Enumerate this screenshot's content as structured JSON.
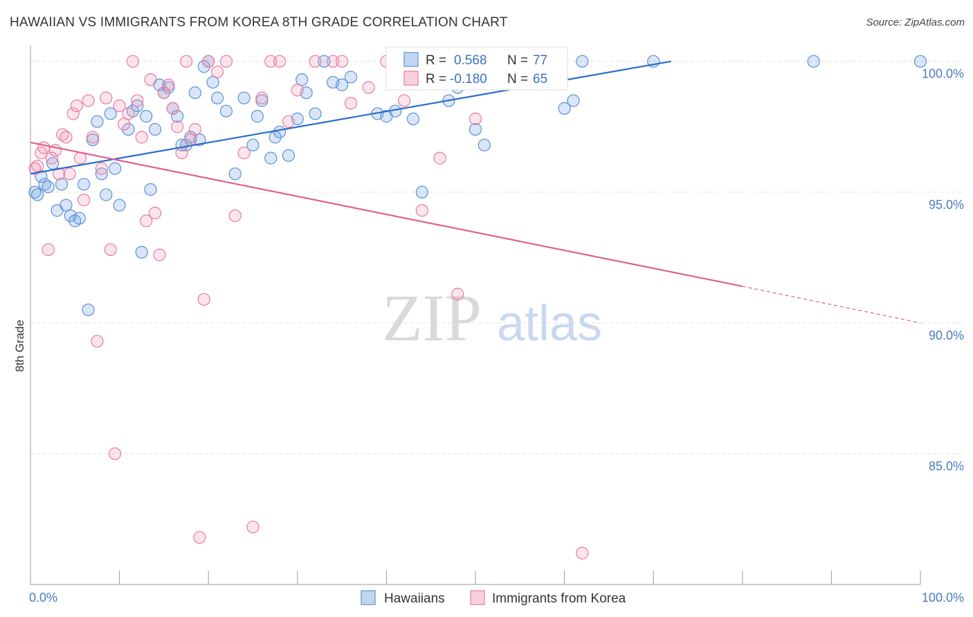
{
  "title": "HAWAIIAN VS IMMIGRANTS FROM KOREA 8TH GRADE CORRELATION CHART",
  "source": "Source: ZipAtlas.com",
  "watermark": {
    "zip": "ZIP",
    "atlas": "atlas"
  },
  "colors": {
    "blue": "#5b8fd6",
    "blue_fill": "rgba(120,165,225,0.28)",
    "blue_line": "#2a6bc9",
    "pink": "#e87aa0",
    "pink_fill": "rgba(240,150,180,0.25)",
    "pink_line": "#e0608c"
  },
  "stats": [
    {
      "r_label": "R =",
      "r_value": "0.568",
      "n_label": "N =",
      "n_value": "77"
    },
    {
      "r_label": "R =",
      "r_value": "-0.180",
      "n_label": "N =",
      "n_value": "65"
    }
  ],
  "chart_data": {
    "type": "scatter",
    "title": "HAWAIIAN VS IMMIGRANTS FROM KOREA 8TH GRADE CORRELATION CHART",
    "xlabel": "",
    "ylabel": "8th Grade",
    "xlim": [
      0,
      100
    ],
    "ylim": [
      80,
      100.6
    ],
    "x_tick_labels": [
      "0.0%",
      "100.0%"
    ],
    "y_ticks": [
      85,
      90,
      95,
      100
    ],
    "y_tick_labels": [
      "85.0%",
      "90.0%",
      "95.0%",
      "100.0%"
    ],
    "grid": true,
    "legend_position": "bottom-center",
    "series": [
      {
        "name": "Hawaiians",
        "trend": {
          "x": [
            0,
            72
          ],
          "y": [
            95.7,
            100.0
          ]
        },
        "x": [
          0.5,
          0.8,
          1.2,
          1.6,
          2,
          2.5,
          3,
          3.5,
          4,
          4.5,
          5,
          5.5,
          6,
          6.5,
          7,
          7.5,
          8,
          8.5,
          9,
          9.5,
          10,
          11,
          11.5,
          12,
          12.5,
          13,
          13.5,
          14,
          14.5,
          15,
          15.5,
          16,
          16.5,
          17,
          17.5,
          18,
          18.5,
          19,
          19.5,
          20,
          20.5,
          21,
          22,
          23,
          24,
          25,
          25.5,
          26,
          27,
          27.5,
          28,
          29,
          30,
          30.5,
          31,
          32,
          33,
          34,
          35,
          36,
          39,
          40,
          41,
          43,
          44,
          47,
          48,
          50,
          51,
          54,
          55,
          60,
          61,
          62,
          70,
          88,
          100
        ],
        "y": [
          95.0,
          94.9,
          95.6,
          95.3,
          95.2,
          96.1,
          94.3,
          95.3,
          94.5,
          94.1,
          93.9,
          94.0,
          95.3,
          90.5,
          97.0,
          97.7,
          95.7,
          94.9,
          98.0,
          95.9,
          94.5,
          97.4,
          98.1,
          98.3,
          92.7,
          97.9,
          95.1,
          97.4,
          99.1,
          98.8,
          99.0,
          98.2,
          97.9,
          96.8,
          96.8,
          97.1,
          98.8,
          97.0,
          99.8,
          100.0,
          99.2,
          98.6,
          98.1,
          95.7,
          98.6,
          96.8,
          97.9,
          98.5,
          96.3,
          97.1,
          97.3,
          96.4,
          97.8,
          99.3,
          98.8,
          98.0,
          100.0,
          99.2,
          99.1,
          99.4,
          98.0,
          97.9,
          98.1,
          97.8,
          95.0,
          98.5,
          99.0,
          97.4,
          96.8,
          100.0,
          100.0,
          98.2,
          98.5,
          100.0,
          100.0,
          100.0,
          100.0
        ]
      },
      {
        "name": "Immigrants from Korea",
        "trend": {
          "x": [
            0,
            80
          ],
          "y": [
            96.9,
            91.4
          ]
        },
        "trend_dashed": {
          "x": [
            80,
            100
          ],
          "y": [
            91.4,
            90.0
          ]
        },
        "x": [
          0.5,
          0.8,
          1.2,
          1.5,
          2,
          2.4,
          2.8,
          3.2,
          3.6,
          4,
          4.4,
          4.8,
          5.2,
          5.6,
          6,
          6.5,
          7,
          7.5,
          8,
          8.5,
          9,
          9.5,
          10,
          10.5,
          11,
          11.5,
          12,
          12.5,
          13,
          13.5,
          14,
          14.5,
          15,
          15.5,
          16,
          16.5,
          17,
          17.5,
          18,
          18.5,
          19,
          19.5,
          20,
          21,
          22,
          23,
          24,
          25,
          26,
          27,
          28,
          29,
          30,
          32,
          34,
          35,
          36,
          38,
          40,
          42,
          44,
          46,
          48,
          50,
          62
        ],
        "y": [
          95.9,
          96.0,
          96.5,
          96.7,
          92.8,
          96.3,
          96.6,
          95.7,
          97.2,
          97.1,
          95.7,
          98.0,
          98.3,
          96.3,
          94.7,
          98.5,
          97.1,
          89.3,
          95.9,
          98.6,
          92.8,
          85.0,
          98.3,
          97.6,
          98.0,
          100.0,
          98.5,
          97.1,
          93.9,
          99.3,
          94.2,
          92.6,
          98.8,
          99.1,
          98.2,
          97.5,
          96.5,
          100.0,
          97.0,
          97.4,
          81.8,
          90.9,
          100.0,
          99.6,
          100.0,
          94.1,
          96.5,
          82.2,
          98.6,
          100.0,
          100.0,
          97.7,
          98.9,
          100.0,
          100.0,
          100.0,
          98.4,
          99.0,
          100.0,
          98.5,
          94.3,
          96.3,
          91.1,
          97.8,
          81.2
        ]
      }
    ]
  },
  "legend": [
    {
      "label": "Hawaiians"
    },
    {
      "label": "Immigrants from Korea"
    }
  ]
}
